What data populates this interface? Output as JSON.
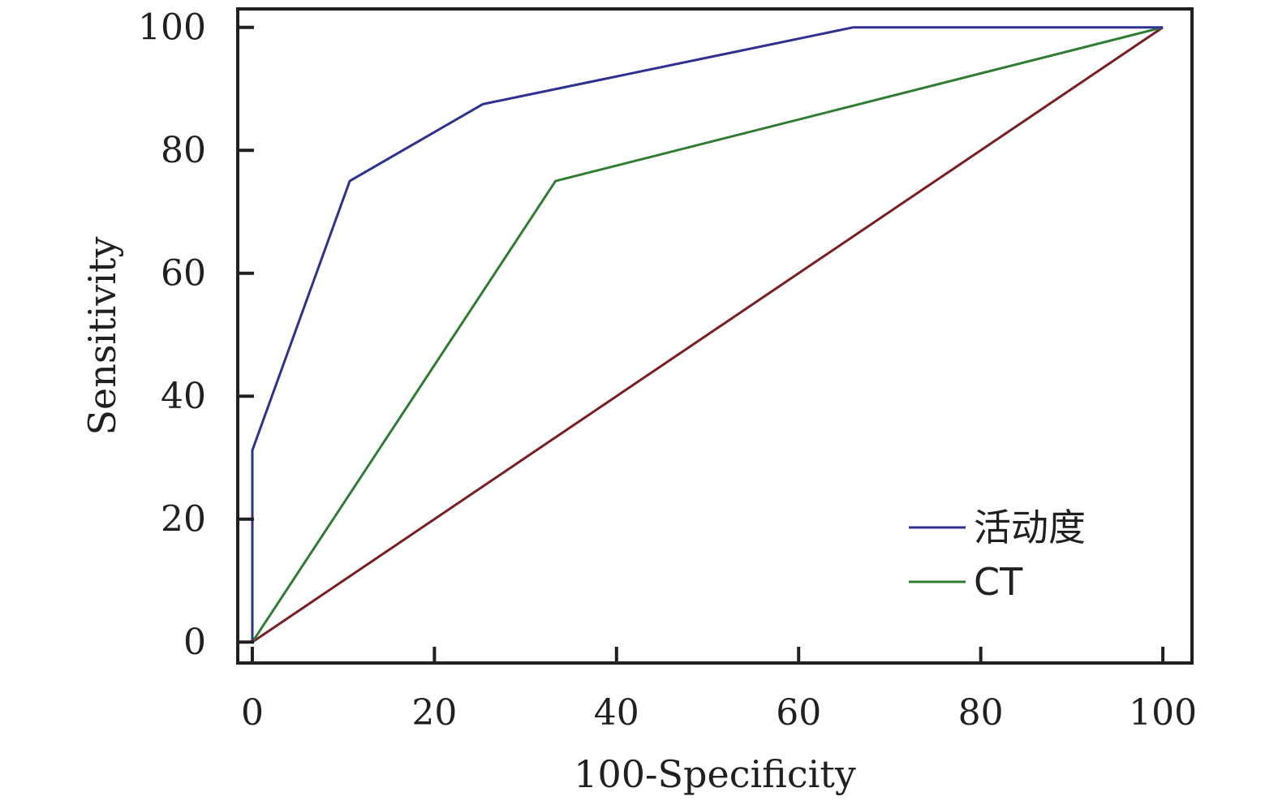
{
  "chart_data": {
    "type": "line",
    "title": "",
    "xlabel": "100-Specificity",
    "ylabel": "Sensitivity",
    "xlim": [
      -1.6,
      103.2
    ],
    "ylim": [
      -3.4,
      103
    ],
    "xticks": [
      0,
      20,
      40,
      60,
      80,
      100
    ],
    "yticks": [
      0,
      20,
      40,
      60,
      80,
      100
    ],
    "grid": false,
    "legend_position": "bottom-right",
    "series": [
      {
        "name": "活动度",
        "color": "#2e3192",
        "in_legend": true,
        "x": [
          0,
          0,
          10.7,
          25.3,
          66,
          100
        ],
        "y": [
          0,
          31.2,
          75,
          87.5,
          100,
          100
        ]
      },
      {
        "name": "CT",
        "color": "#2e7d32",
        "in_legend": true,
        "x": [
          0,
          33.3,
          100
        ],
        "y": [
          0,
          75,
          100
        ]
      },
      {
        "name": "",
        "color": "#7b1e22",
        "in_legend": false,
        "x": [
          0,
          100
        ],
        "y": [
          0,
          100
        ]
      }
    ]
  }
}
